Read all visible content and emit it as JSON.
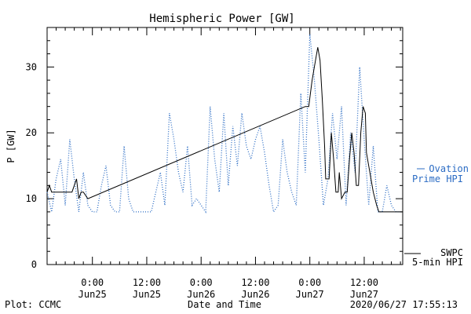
{
  "chart_data": {
    "type": "line",
    "title": "Hemispheric Power [GW]",
    "xlabel": "Date and Time",
    "ylabel": "P [GW]",
    "xlim": [
      "2020-06-24T14:00",
      "2020-06-27T20:30"
    ],
    "ylim": [
      0,
      36
    ],
    "yticks": [
      0,
      10,
      20,
      30
    ],
    "xticks": [
      {
        "t": "2020-06-25T00:00",
        "time": "0:00",
        "date": "Jun25"
      },
      {
        "t": "2020-06-25T12:00",
        "time": "12:00",
        "date": "Jun25"
      },
      {
        "t": "2020-06-26T00:00",
        "time": "0:00",
        "date": "Jun26"
      },
      {
        "t": "2020-06-26T12:00",
        "time": "12:00",
        "date": "Jun26"
      },
      {
        "t": "2020-06-27T00:00",
        "time": "0:00",
        "date": "Jun27"
      },
      {
        "t": "2020-06-27T12:00",
        "time": "12:00",
        "date": "Jun27"
      }
    ],
    "grid": false,
    "legend_placement": "right",
    "series": [
      {
        "name": "Ovation Prime HPI",
        "label_lines": [
          "Ovation",
          "Prime HPI"
        ],
        "color": "#2b6cc4",
        "style": "dotted",
        "x": [
          "2020-06-24T14:00",
          "2020-06-24T15:00",
          "2020-06-24T16:00",
          "2020-06-24T17:00",
          "2020-06-24T18:00",
          "2020-06-24T19:00",
          "2020-06-24T20:00",
          "2020-06-24T21:00",
          "2020-06-24T22:00",
          "2020-06-24T23:00",
          "2020-06-25T00:00",
          "2020-06-25T01:00",
          "2020-06-25T02:00",
          "2020-06-25T03:00",
          "2020-06-25T04:00",
          "2020-06-25T05:00",
          "2020-06-25T06:00",
          "2020-06-25T07:00",
          "2020-06-25T08:00",
          "2020-06-25T09:00",
          "2020-06-25T10:00",
          "2020-06-25T11:00",
          "2020-06-25T12:00",
          "2020-06-25T13:00",
          "2020-06-25T14:00",
          "2020-06-25T15:00",
          "2020-06-25T16:00",
          "2020-06-25T17:00",
          "2020-06-25T18:00",
          "2020-06-25T19:00",
          "2020-06-25T20:00",
          "2020-06-25T21:00",
          "2020-06-25T22:00",
          "2020-06-25T23:00",
          "2020-06-26T00:00",
          "2020-06-26T01:00",
          "2020-06-26T02:00",
          "2020-06-26T03:00",
          "2020-06-26T04:00",
          "2020-06-26T05:00",
          "2020-06-26T06:00",
          "2020-06-26T07:00",
          "2020-06-26T08:00",
          "2020-06-26T09:00",
          "2020-06-26T10:00",
          "2020-06-26T11:00",
          "2020-06-26T12:00",
          "2020-06-26T13:00",
          "2020-06-26T14:00",
          "2020-06-26T15:00",
          "2020-06-26T16:00",
          "2020-06-26T17:00",
          "2020-06-26T18:00",
          "2020-06-26T19:00",
          "2020-06-26T20:00",
          "2020-06-26T21:00",
          "2020-06-26T22:00",
          "2020-06-26T23:00",
          "2020-06-27T00:00",
          "2020-06-27T01:00",
          "2020-06-27T02:00",
          "2020-06-27T03:00",
          "2020-06-27T04:00",
          "2020-06-27T05:00",
          "2020-06-27T06:00",
          "2020-06-27T07:00",
          "2020-06-27T08:00",
          "2020-06-27T09:00",
          "2020-06-27T10:00",
          "2020-06-27T11:00",
          "2020-06-27T12:00",
          "2020-06-27T13:00",
          "2020-06-27T14:00",
          "2020-06-27T15:00",
          "2020-06-27T16:00",
          "2020-06-27T17:00",
          "2020-06-27T18:00",
          "2020-06-27T19:00",
          "2020-06-27T20:00"
        ],
        "y": [
          11,
          8,
          13,
          16,
          9,
          19,
          13,
          8,
          14,
          9,
          8,
          8,
          12,
          15,
          9,
          8,
          8,
          18,
          10,
          8,
          8,
          8,
          8,
          8,
          11,
          14,
          9,
          23,
          19,
          14,
          11,
          18,
          9,
          10,
          9,
          8,
          24,
          16,
          11,
          23,
          12,
          21,
          15,
          23,
          18,
          16,
          19,
          21,
          17,
          12,
          8,
          9,
          19,
          14,
          11,
          9,
          26,
          14,
          35,
          28,
          19,
          9,
          13,
          23,
          16,
          24,
          9,
          20,
          14,
          30,
          19,
          9,
          18,
          8,
          8,
          12,
          9,
          8,
          8
        ]
      },
      {
        "name": "SWPC 5-min HPI",
        "label_lines": [
          "SWPC",
          "5-min HPI"
        ],
        "color": "#000000",
        "style": "solid",
        "x": [
          "2020-06-24T14:00",
          "2020-06-24T14:30",
          "2020-06-24T15:00",
          "2020-06-24T16:30",
          "2020-06-24T17:00",
          "2020-06-24T18:00",
          "2020-06-24T19:30",
          "2020-06-24T20:00",
          "2020-06-24T20:30",
          "2020-06-24T21:00",
          "2020-06-24T21:30",
          "2020-06-24T22:00",
          "2020-06-24T23:00",
          "2020-06-26T23:00",
          "2020-06-26T23:45",
          "2020-06-27T00:30",
          "2020-06-27T01:15",
          "2020-06-27T01:45",
          "2020-06-27T02:15",
          "2020-06-27T02:45",
          "2020-06-27T03:15",
          "2020-06-27T03:30",
          "2020-06-27T04:15",
          "2020-06-27T04:45",
          "2020-06-27T05:15",
          "2020-06-27T05:45",
          "2020-06-27T06:15",
          "2020-06-27T06:30",
          "2020-06-27T07:00",
          "2020-06-27T07:45",
          "2020-06-27T08:15",
          "2020-06-27T08:45",
          "2020-06-27T09:15",
          "2020-06-27T09:45",
          "2020-06-27T10:15",
          "2020-06-27T10:45",
          "2020-06-27T11:15",
          "2020-06-27T11:45",
          "2020-06-27T12:15",
          "2020-06-27T12:30",
          "2020-06-27T13:00",
          "2020-06-27T13:30",
          "2020-06-27T14:00",
          "2020-06-27T14:45",
          "2020-06-27T15:15",
          "2020-06-27T16:00",
          "2020-06-27T20:30"
        ],
        "y": [
          11,
          12,
          11,
          11,
          11,
          11,
          11,
          12,
          13,
          10,
          11,
          11,
          10,
          24,
          24,
          28,
          31,
          33,
          31,
          25,
          18,
          13,
          13,
          20,
          16,
          11,
          11,
          14,
          10,
          11,
          11,
          16,
          20,
          17,
          12,
          12,
          20,
          24,
          23,
          17,
          15,
          13,
          11,
          9,
          8,
          8,
          8
        ]
      }
    ],
    "footer": {
      "left": "Plot: CCMC",
      "right": "2020/06/27 17:55:13"
    }
  },
  "colors": {
    "ovation": "#2b6cc4",
    "swpc": "#000000",
    "axis": "#000000",
    "background": "#ffffff"
  }
}
